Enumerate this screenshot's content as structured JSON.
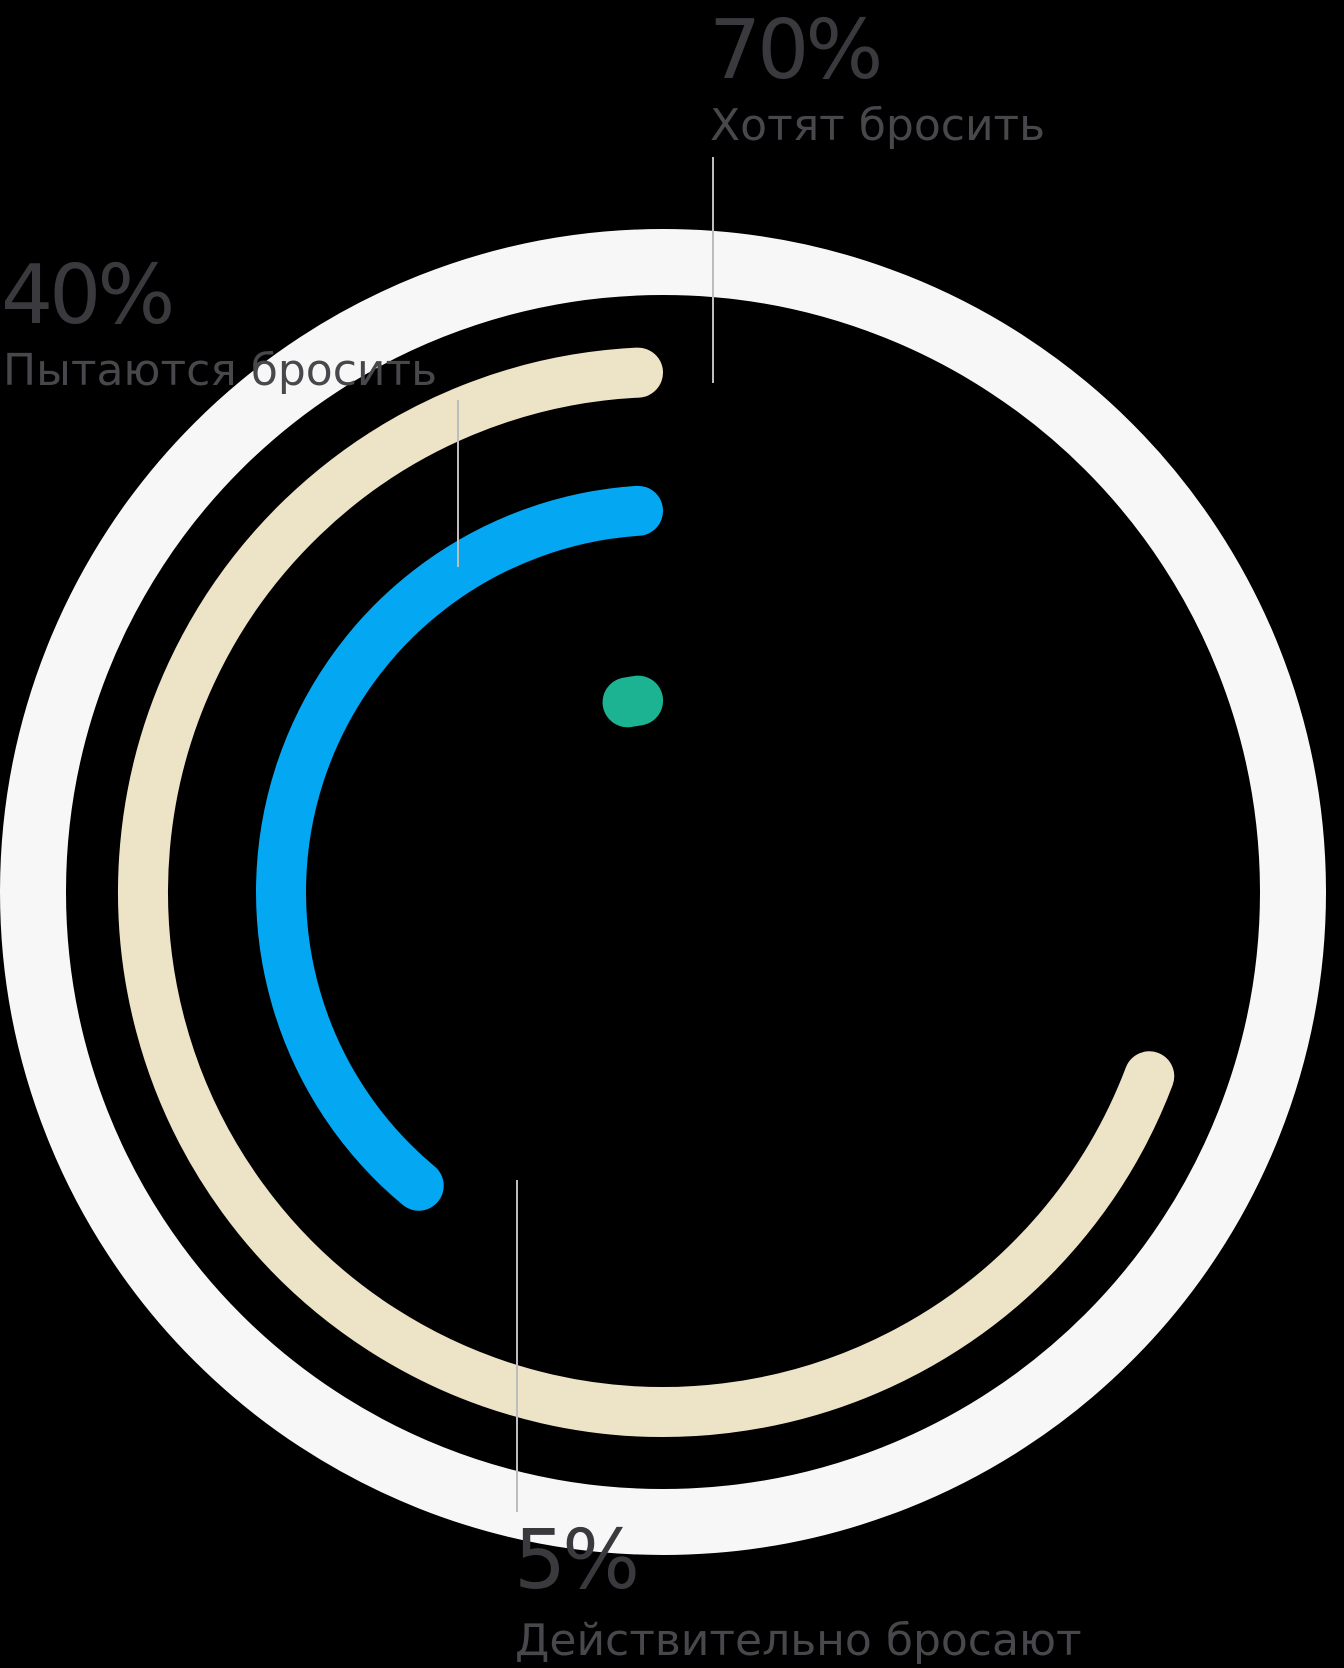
{
  "colors": {
    "background": "#000000",
    "outer_ring": "#F7F7F7",
    "wants_to_quit": "#EDE3C7",
    "trying_to_quit": "#04A8F2",
    "actually_quit": "#1BB391",
    "percent_text": "#3A3A3E",
    "caption_text": "#48484C",
    "leader_line": "#BDBDBD"
  },
  "chart_data": {
    "type": "radial-bar",
    "full_scale": 100,
    "series": [
      {
        "key": "wants_to_quit",
        "value": 70,
        "percent_label": "70%",
        "caption": "Хотят бросить"
      },
      {
        "key": "trying_to_quit",
        "value": 40,
        "percent_label": "40%",
        "caption": "Пытаются бросить"
      },
      {
        "key": "actually_quit",
        "value": 5,
        "percent_label": "5%",
        "caption": "Действительно бросают"
      }
    ]
  }
}
